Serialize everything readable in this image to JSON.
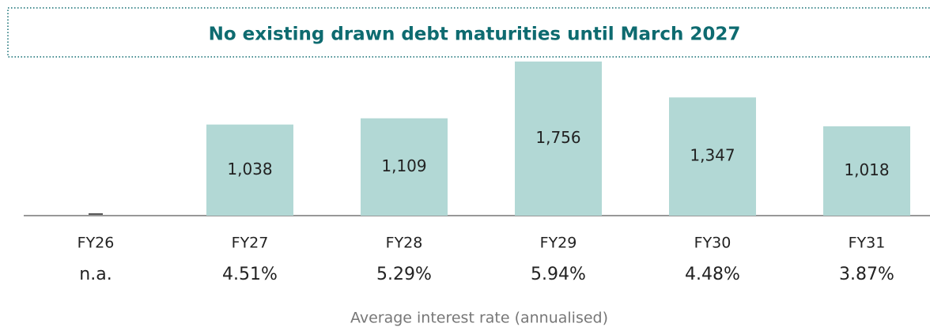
{
  "chart_data": {
    "type": "bar",
    "title": "No existing drawn debt maturities until March 2027",
    "categories": [
      "FY26",
      "FY27",
      "FY28",
      "FY29",
      "FY30",
      "FY31"
    ],
    "values": [
      null,
      1038,
      1109,
      1756,
      1347,
      1018
    ],
    "value_labels": [
      null,
      "1,038",
      "1,109",
      "1,756",
      "1,347",
      "1,018"
    ],
    "color": "#b2d8d5",
    "ylim": [
      0,
      1800
    ],
    "rate_labels": [
      "n.a.",
      "4.51%",
      "5.29%",
      "5.94%",
      "4.48%",
      "3.87%"
    ],
    "rate_axis_label": "Average interest rate (annualised)"
  }
}
